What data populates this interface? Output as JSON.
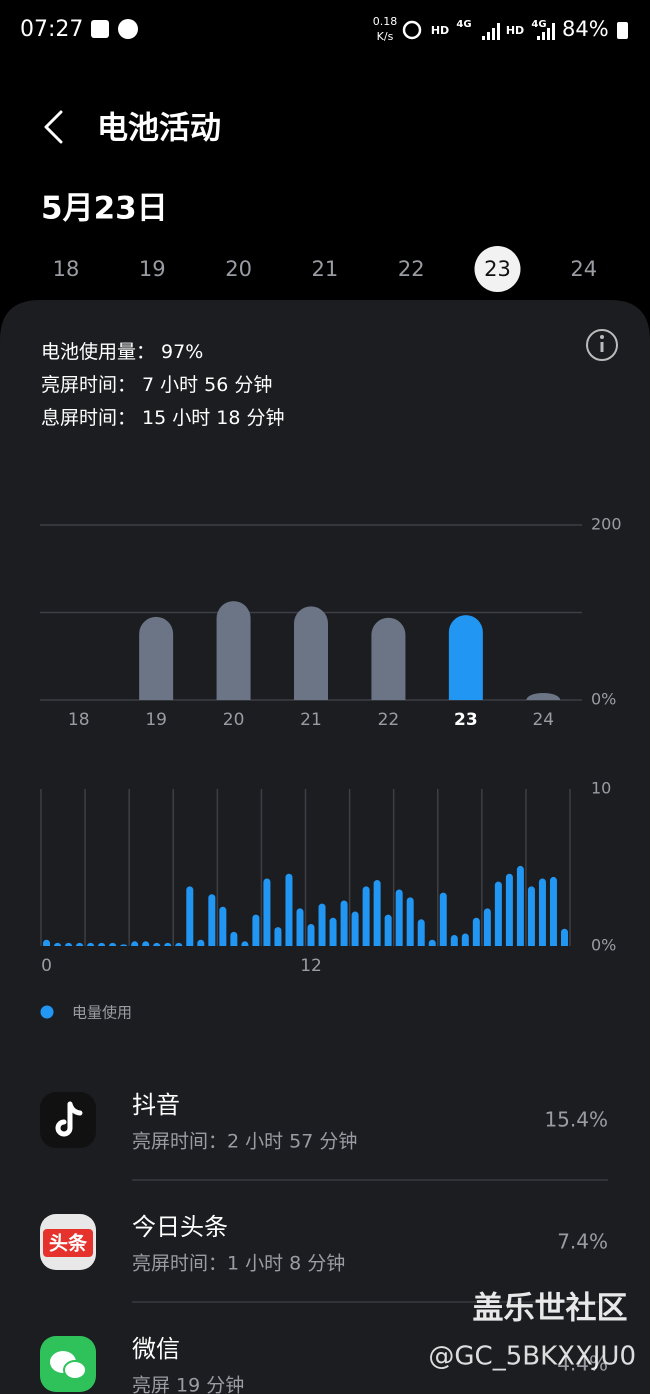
{
  "status_bar": {
    "time": "07:27",
    "speed": "0.18",
    "speed_unit": "K/s",
    "hd1": "HD",
    "net1": "4G",
    "hd2": "HD",
    "net2": "4G",
    "battery": "84%"
  },
  "header": {
    "title": "电池活动"
  },
  "date": "5月23日",
  "days": {
    "labels": [
      "18",
      "19",
      "20",
      "21",
      "22",
      "23",
      "24"
    ],
    "selected": 5
  },
  "summary": [
    {
      "label": "电池使用量：",
      "value": "97%"
    },
    {
      "label": "亮屏时间：",
      "value": "7 小时 56 分钟"
    },
    {
      "label": "息屏时间：",
      "value": "15 小时 18 分钟"
    }
  ],
  "chart_data": [
    {
      "type": "bar",
      "categories": [
        "18",
        "19",
        "20",
        "21",
        "22",
        "23",
        "24"
      ],
      "values": [
        0,
        95,
        113,
        107,
        94,
        97,
        8
      ],
      "color": "#6b7585",
      "highlight_color": "#2196f3",
      "highlight_index": 5,
      "ylim": [
        0,
        200
      ],
      "yticks": [
        {
          "value": 0,
          "label": "0%"
        },
        200
      ],
      "minor_gridlines": [
        100
      ],
      "grid": true
    },
    {
      "type": "bar",
      "categories": [
        "0",
        null,
        null,
        null,
        null,
        null,
        null,
        null,
        null,
        null,
        null,
        null,
        null,
        null,
        null,
        null,
        null,
        null,
        null,
        null,
        null,
        null,
        null,
        null,
        "12",
        null,
        null,
        null,
        null,
        null,
        null,
        null,
        null,
        null,
        null,
        null,
        null,
        null,
        null,
        null,
        null,
        null,
        null,
        null,
        null,
        null,
        null,
        null
      ],
      "series": [
        {
          "name": "电量使用",
          "color": "#2196f3",
          "values": [
            0.4,
            0.2,
            0.2,
            0.2,
            0.2,
            0.2,
            0.2,
            0.1,
            0.3,
            0.3,
            0.2,
            0.2,
            0.2,
            3.8,
            0.4,
            3.3,
            2.5,
            0.9,
            0.3,
            2.0,
            4.3,
            1.2,
            4.6,
            2.4,
            1.4,
            2.7,
            1.8,
            2.9,
            2.2,
            3.8,
            4.2,
            2.0,
            3.6,
            3.1,
            1.7,
            0.4,
            3.4,
            0.7,
            0.8,
            1.8,
            2.4,
            4.1,
            4.6,
            5.1,
            3.8,
            4.3,
            4.4,
            1.1
          ]
        }
      ],
      "ylim": [
        0,
        10
      ],
      "yticks": [
        {
          "value": 0,
          "label": "0%"
        },
        10
      ]
    }
  ],
  "apps": [
    {
      "name": "抖音",
      "detail": "亮屏时间：2 小时 57 分钟",
      "percent": "15.4%"
    },
    {
      "name": "今日头条",
      "detail": "亮屏时间：1 小时 8 分钟",
      "percent": "7.4%",
      "icon_text": "头条"
    },
    {
      "name": "微信",
      "detail": "亮屏 19 分钟",
      "percent": "4.4%"
    }
  ],
  "watermark": {
    "line1": "盖乐世社区",
    "line2": "@GC_5BKXXJU0"
  }
}
